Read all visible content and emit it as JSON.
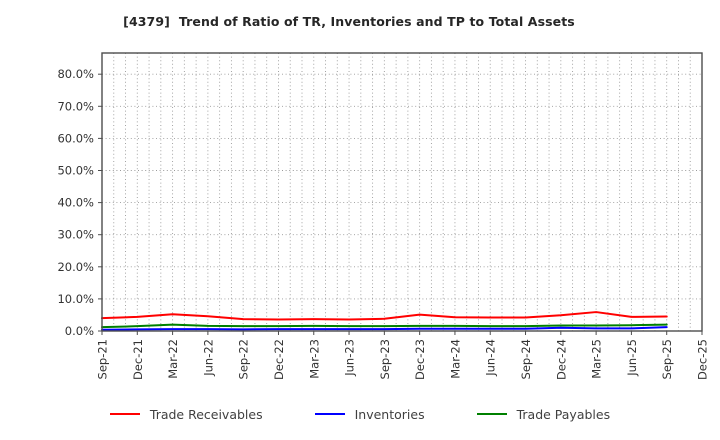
{
  "chart_data": {
    "type": "line",
    "title": "[4379]  Trend of Ratio of TR, Inventories and TP to Total Assets",
    "categories": [
      "Sep-21",
      "Dec-21",
      "Mar-22",
      "Jun-22",
      "Sep-22",
      "Dec-22",
      "Mar-23",
      "Jun-23",
      "Sep-23",
      "Dec-23",
      "Mar-24",
      "Jun-24",
      "Sep-24",
      "Dec-24",
      "Mar-25",
      "Jun-25",
      "Sep-25",
      "Dec-25"
    ],
    "series": [
      {
        "name": "Trade Receivables",
        "color": "#ff0000",
        "values": [
          4.0,
          4.4,
          5.2,
          4.6,
          3.7,
          3.6,
          3.7,
          3.6,
          3.8,
          5.1,
          4.3,
          4.2,
          4.2,
          4.9,
          5.9,
          4.4,
          4.5
        ]
      },
      {
        "name": "Inventories",
        "color": "#0000ff",
        "values": [
          0.4,
          0.5,
          0.6,
          0.6,
          0.5,
          0.6,
          0.6,
          0.6,
          0.6,
          0.7,
          0.7,
          0.7,
          0.7,
          1.0,
          0.8,
          0.8,
          1.2
        ]
      },
      {
        "name": "Trade Payables",
        "color": "#008000",
        "values": [
          1.2,
          1.5,
          2.0,
          1.6,
          1.5,
          1.5,
          1.6,
          1.5,
          1.5,
          1.6,
          1.6,
          1.5,
          1.5,
          1.7,
          1.7,
          1.8,
          2.0
        ]
      }
    ],
    "xlabel": "",
    "ylabel": "",
    "y_tick_labels": [
      "0.0%",
      "10.0%",
      "20.0%",
      "30.0%",
      "40.0%",
      "50.0%",
      "60.0%",
      "70.0%",
      "80.0%"
    ],
    "y_tick_values": [
      0,
      10,
      20,
      30,
      40,
      50,
      60,
      70,
      80
    ],
    "ylim": [
      0,
      86.6
    ],
    "grid": "dotted",
    "minor_vertical_gridlines": "monthly (3 per quarter)",
    "legend_position": "bottom",
    "note_last_data_point": "Sep-25 (no data at Dec-25)"
  }
}
